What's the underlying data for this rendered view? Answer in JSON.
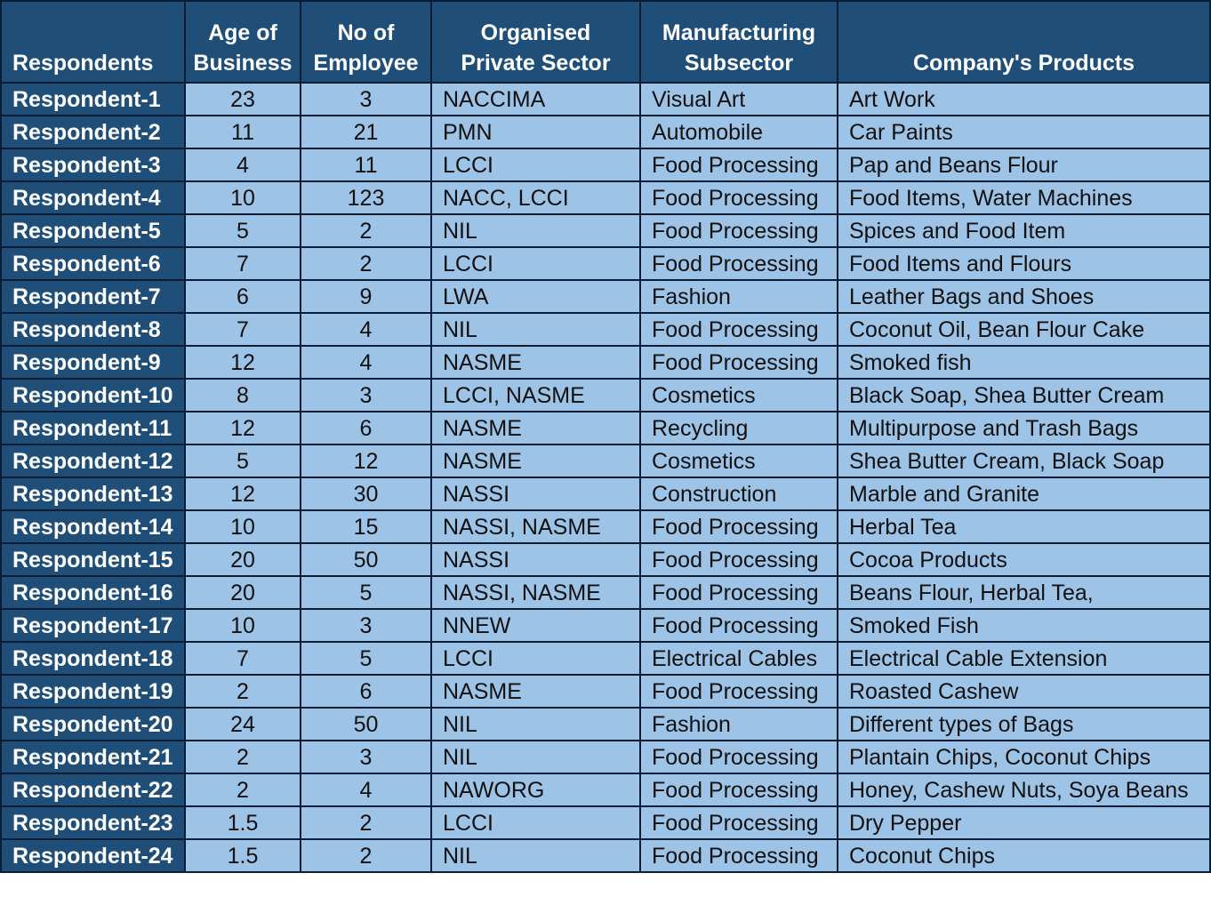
{
  "headers": {
    "respondents": "Respondents",
    "age_line1": "Age of",
    "age_line2": "Business",
    "employees_line1": "No of",
    "employees_line2": "Employee",
    "sector_line1": "Organised",
    "sector_line2": "Private Sector",
    "subsector_line1": "Manufacturing",
    "subsector_line2": "Subsector",
    "products": "Company's Products"
  },
  "rows": [
    {
      "respondent": "Respondent-1",
      "age": "23",
      "employees": "3",
      "sector": "NACCIMA",
      "subsector": "Visual Art",
      "products": "Art Work"
    },
    {
      "respondent": "Respondent-2",
      "age": "11",
      "employees": "21",
      "sector": "PMN",
      "subsector": "Automobile",
      "products": "Car Paints"
    },
    {
      "respondent": "Respondent-3",
      "age": "4",
      "employees": "11",
      "sector": "LCCI",
      "subsector": "Food Processing",
      "products": "Pap and Beans Flour"
    },
    {
      "respondent": "Respondent-4",
      "age": "10",
      "employees": "123",
      "sector": "NACC, LCCI",
      "subsector": "Food Processing",
      "products": "Food Items, Water Machines"
    },
    {
      "respondent": "Respondent-5",
      "age": "5",
      "employees": "2",
      "sector": "NIL",
      "subsector": "Food Processing",
      "products": "Spices and Food Item"
    },
    {
      "respondent": "Respondent-6",
      "age": "7",
      "employees": "2",
      "sector": "LCCI",
      "subsector": "Food Processing",
      "products": "Food Items and Flours"
    },
    {
      "respondent": "Respondent-7",
      "age": "6",
      "employees": "9",
      "sector": "LWA",
      "subsector": "Fashion",
      "products": "Leather Bags and Shoes"
    },
    {
      "respondent": "Respondent-8",
      "age": "7",
      "employees": "4",
      "sector": "NIL",
      "subsector": "Food Processing",
      "products": "Coconut Oil, Bean Flour Cake"
    },
    {
      "respondent": "Respondent-9",
      "age": "12",
      "employees": "4",
      "sector": "NASME",
      "subsector": "Food Processing",
      "products": "Smoked fish"
    },
    {
      "respondent": "Respondent-10",
      "age": "8",
      "employees": "3",
      "sector": "LCCI, NASME",
      "subsector": "Cosmetics",
      "products": "Black Soap, Shea Butter Cream"
    },
    {
      "respondent": "Respondent-11",
      "age": "12",
      "employees": "6",
      "sector": "NASME",
      "subsector": "Recycling",
      "products": "Multipurpose and Trash Bags"
    },
    {
      "respondent": "Respondent-12",
      "age": "5",
      "employees": "12",
      "sector": "NASME",
      "subsector": "Cosmetics",
      "products": "Shea Butter Cream, Black Soap"
    },
    {
      "respondent": "Respondent-13",
      "age": "12",
      "employees": "30",
      "sector": "NASSI",
      "subsector": "Construction",
      "products": "Marble and Granite"
    },
    {
      "respondent": "Respondent-14",
      "age": "10",
      "employees": "15",
      "sector": "NASSI, NASME",
      "subsector": "Food Processing",
      "products": "Herbal Tea"
    },
    {
      "respondent": "Respondent-15",
      "age": "20",
      "employees": "50",
      "sector": "NASSI",
      "subsector": "Food Processing",
      "products": "Cocoa Products"
    },
    {
      "respondent": "Respondent-16",
      "age": "20",
      "employees": "5",
      "sector": "NASSI, NASME",
      "subsector": "Food Processing",
      "products": "Beans Flour, Herbal Tea,"
    },
    {
      "respondent": "Respondent-17",
      "age": "10",
      "employees": "3",
      "sector": "NNEW",
      "subsector": "Food Processing",
      "products": "Smoked Fish"
    },
    {
      "respondent": "Respondent-18",
      "age": "7",
      "employees": "5",
      "sector": "LCCI",
      "subsector": "Electrical Cables",
      "products": "Electrical Cable Extension"
    },
    {
      "respondent": "Respondent-19",
      "age": "2",
      "employees": "6",
      "sector": "NASME",
      "subsector": "Food Processing",
      "products": "Roasted Cashew"
    },
    {
      "respondent": "Respondent-20",
      "age": "24",
      "employees": "50",
      "sector": "NIL",
      "subsector": "Fashion",
      "products": "Different types of Bags"
    },
    {
      "respondent": "Respondent-21",
      "age": "2",
      "employees": "3",
      "sector": "NIL",
      "subsector": "Food Processing",
      "products": "Plantain Chips, Coconut Chips"
    },
    {
      "respondent": "Respondent-22",
      "age": "2",
      "employees": "4",
      "sector": "NAWORG",
      "subsector": "Food Processing",
      "products": "Honey, Cashew Nuts, Soya Beans"
    },
    {
      "respondent": "Respondent-23",
      "age": "1.5",
      "employees": "2",
      "sector": "LCCI",
      "subsector": "Food Processing",
      "products": "Dry Pepper"
    },
    {
      "respondent": "Respondent-24",
      "age": "1.5",
      "employees": "2",
      "sector": "NIL",
      "subsector": "Food Processing",
      "products": "Coconut Chips"
    }
  ]
}
